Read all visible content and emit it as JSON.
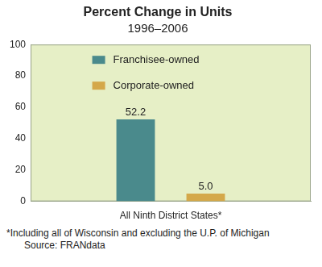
{
  "chart_data": {
    "type": "bar",
    "title": "Percent Change in Units",
    "subtitle": "1996–2006",
    "categories": [
      "All Ninth District States*"
    ],
    "series": [
      {
        "name": "Franchisee-owned",
        "color": "#4a8a8c",
        "values": [
          52.2
        ],
        "value_labels": [
          "52.2"
        ]
      },
      {
        "name": "Corporate-owned",
        "color": "#d4a84a",
        "values": [
          5
        ],
        "value_labels": [
          "5.0"
        ]
      }
    ],
    "ylim": [
      0,
      100
    ],
    "yticks": [
      0,
      20,
      40,
      60,
      80,
      100
    ],
    "grid": false,
    "legend": "upper left",
    "data_labels": true,
    "footnote": "*Including all of Wisconsin and excluding the U.P. of Michigan",
    "source": "Source: FRANdata"
  }
}
